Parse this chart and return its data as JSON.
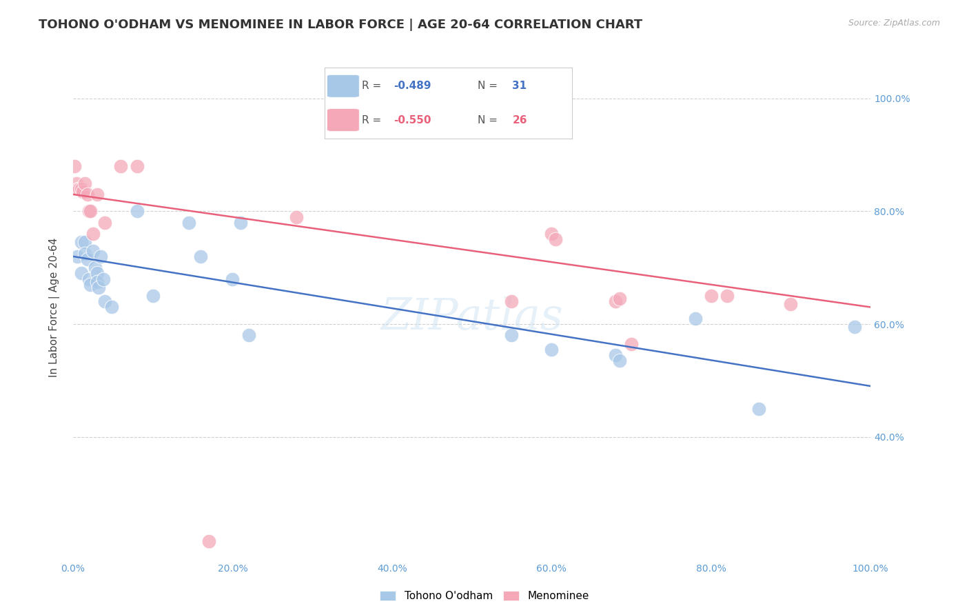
{
  "title": "TOHONO O'ODHAM VS MENOMINEE IN LABOR FORCE | AGE 20-64 CORRELATION CHART",
  "source": "Source: ZipAtlas.com",
  "ylabel": "In Labor Force | Age 20-64",
  "xlim": [
    0.0,
    1.0
  ],
  "ylim": [
    0.18,
    1.08
  ],
  "xticks": [
    0.0,
    0.2,
    0.4,
    0.6,
    0.8,
    1.0
  ],
  "yticks": [
    0.4,
    0.6,
    0.8,
    1.0
  ],
  "xticklabels": [
    "0.0%",
    "20.0%",
    "40.0%",
    "60.0%",
    "80.0%",
    "100.0%"
  ],
  "right_yticklabels": [
    "40.0%",
    "60.0%",
    "80.0%",
    "100.0%"
  ],
  "legend_blue_r": "-0.489",
  "legend_blue_n": "31",
  "legend_pink_r": "-0.550",
  "legend_pink_n": "26",
  "legend_label_blue": "Tohono O'odham",
  "legend_label_pink": "Menominee",
  "blue_color": "#a8c8e8",
  "pink_color": "#f4a8b8",
  "blue_line_color": "#4472c4",
  "pink_line_color": "#e8607a",
  "blue_r_color": "#4472c4",
  "blue_n_color": "#4472c4",
  "pink_r_color": "#e8607a",
  "pink_n_color": "#e8607a",
  "watermark": "ZIPatlas",
  "blue_scatter": [
    [
      0.005,
      0.72
    ],
    [
      0.01,
      0.745
    ],
    [
      0.01,
      0.69
    ],
    [
      0.015,
      0.745
    ],
    [
      0.015,
      0.725
    ],
    [
      0.018,
      0.715
    ],
    [
      0.02,
      0.68
    ],
    [
      0.022,
      0.67
    ],
    [
      0.025,
      0.73
    ],
    [
      0.028,
      0.7
    ],
    [
      0.03,
      0.69
    ],
    [
      0.03,
      0.675
    ],
    [
      0.032,
      0.665
    ],
    [
      0.035,
      0.72
    ],
    [
      0.038,
      0.68
    ],
    [
      0.04,
      0.64
    ],
    [
      0.048,
      0.63
    ],
    [
      0.08,
      0.8
    ],
    [
      0.1,
      0.65
    ],
    [
      0.145,
      0.78
    ],
    [
      0.16,
      0.72
    ],
    [
      0.2,
      0.68
    ],
    [
      0.21,
      0.78
    ],
    [
      0.22,
      0.58
    ],
    [
      0.55,
      0.58
    ],
    [
      0.6,
      0.555
    ],
    [
      0.68,
      0.545
    ],
    [
      0.685,
      0.535
    ],
    [
      0.78,
      0.61
    ],
    [
      0.86,
      0.45
    ],
    [
      0.98,
      0.595
    ]
  ],
  "pink_scatter": [
    [
      0.002,
      0.88
    ],
    [
      0.004,
      0.85
    ],
    [
      0.006,
      0.84
    ],
    [
      0.008,
      0.84
    ],
    [
      0.01,
      0.84
    ],
    [
      0.012,
      0.835
    ],
    [
      0.015,
      0.85
    ],
    [
      0.018,
      0.83
    ],
    [
      0.02,
      0.8
    ],
    [
      0.022,
      0.8
    ],
    [
      0.025,
      0.76
    ],
    [
      0.03,
      0.83
    ],
    [
      0.04,
      0.78
    ],
    [
      0.06,
      0.88
    ],
    [
      0.08,
      0.88
    ],
    [
      0.17,
      0.215
    ],
    [
      0.28,
      0.79
    ],
    [
      0.55,
      0.64
    ],
    [
      0.6,
      0.76
    ],
    [
      0.605,
      0.75
    ],
    [
      0.68,
      0.64
    ],
    [
      0.685,
      0.645
    ],
    [
      0.7,
      0.565
    ],
    [
      0.8,
      0.65
    ],
    [
      0.82,
      0.65
    ],
    [
      0.9,
      0.635
    ]
  ],
  "blue_trendline": [
    [
      0.0,
      0.72
    ],
    [
      1.0,
      0.49
    ]
  ],
  "pink_trendline": [
    [
      0.0,
      0.83
    ],
    [
      1.0,
      0.63
    ]
  ],
  "grid_color": "#d0d0d0",
  "bg_color": "#ffffff",
  "title_fontsize": 13,
  "axis_label_fontsize": 11,
  "tick_fontsize": 10,
  "legend_fontsize": 11,
  "tick_color": "#5b9bd5"
}
